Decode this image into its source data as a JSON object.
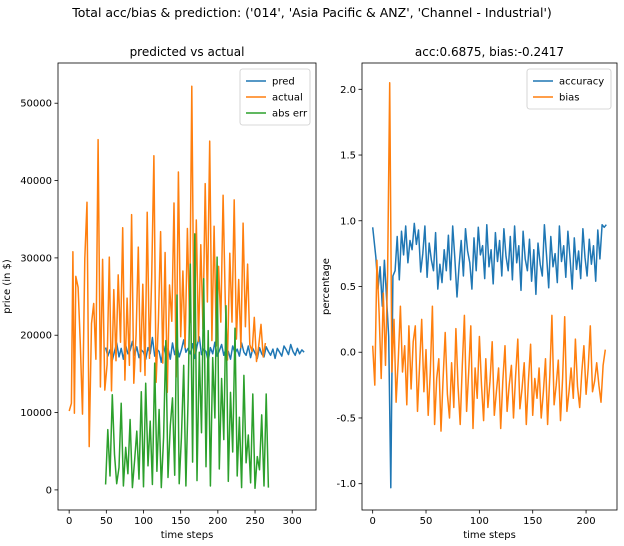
{
  "figure": {
    "suptitle": "Total acc/bias & prediction: ('014', 'Asia Pacific & ANZ', 'Channel - Industrial')"
  },
  "chart_data": [
    {
      "type": "line",
      "title": "predicted vs actual",
      "xlabel": "time steps",
      "ylabel": "price (in $)",
      "xlim": [
        -15,
        332
      ],
      "ylim": [
        -2600,
        55200
      ],
      "xticks": [
        0,
        50,
        100,
        150,
        200,
        250,
        300
      ],
      "yticks": [
        0,
        10000,
        20000,
        30000,
        40000,
        50000
      ],
      "legend_position": "top-right",
      "grid": false,
      "series": [
        {
          "name": "pred",
          "color": "#1f77b4",
          "x": [
            49,
            52,
            55,
            58,
            61,
            64,
            67,
            70,
            73,
            76,
            79,
            82,
            85,
            88,
            91,
            94,
            97,
            100,
            103,
            106,
            109,
            112,
            115,
            118,
            121,
            124,
            127,
            130,
            133,
            136,
            139,
            142,
            145,
            148,
            151,
            154,
            157,
            160,
            163,
            166,
            169,
            172,
            175,
            178,
            181,
            184,
            187,
            190,
            193,
            196,
            199,
            202,
            205,
            208,
            211,
            214,
            217,
            220,
            223,
            226,
            229,
            232,
            235,
            238,
            241,
            244,
            247,
            250,
            253,
            256,
            259,
            262,
            265,
            268,
            271,
            274,
            277,
            280,
            283,
            286,
            289,
            292,
            295,
            298,
            301,
            304,
            307,
            310,
            313,
            316
          ],
          "y": [
            18400,
            17300,
            18100,
            16800,
            17900,
            19000,
            17200,
            18300,
            16900,
            18700,
            17600,
            18000,
            19200,
            17400,
            18500,
            17100,
            18100,
            17800,
            16900,
            18400,
            17600,
            19700,
            17300,
            18200,
            17900,
            16500,
            18600,
            17400,
            18300,
            16900,
            19000,
            17500,
            18700,
            17200,
            18100,
            19400,
            17800,
            18300,
            17600,
            18900,
            17000,
            18600,
            19800,
            17500,
            18200,
            17900,
            16700,
            18400,
            17600,
            19100,
            17300,
            18000,
            18800,
            17400,
            18300,
            17900,
            16900,
            18600,
            17700,
            18200,
            17300,
            19000,
            17800,
            17400,
            18600,
            17100,
            18300,
            17700,
            17000,
            18400,
            17600,
            17200,
            18500,
            17900,
            17400,
            18200,
            17000,
            18300,
            17800,
            17300,
            18600,
            18100,
            17500,
            18800,
            17900,
            17400,
            18300,
            17600,
            18100,
            17800
          ]
        },
        {
          "name": "actual",
          "color": "#ff7f0e",
          "x": [
            0,
            3,
            5,
            7,
            9,
            12,
            15,
            18,
            21,
            24,
            27,
            30,
            33,
            36,
            39,
            42,
            45,
            48,
            51,
            54,
            57,
            60,
            63,
            66,
            69,
            72,
            75,
            78,
            81,
            84,
            87,
            90,
            93,
            96,
            99,
            102,
            105,
            108,
            111,
            114,
            117,
            120,
            123,
            126,
            129,
            132,
            135,
            138,
            141,
            144,
            147,
            150,
            153,
            156,
            159,
            162,
            165,
            168,
            171,
            174,
            177,
            180,
            183,
            186,
            189,
            192,
            195,
            198,
            201,
            204,
            207,
            210,
            213,
            216,
            219,
            222,
            225,
            228,
            231,
            234,
            237,
            240,
            243,
            246,
            249,
            252,
            255,
            258,
            261,
            264
          ],
          "y": [
            10200,
            11200,
            30800,
            9900,
            27600,
            26200,
            18900,
            9800,
            29900,
            37200,
            5600,
            21500,
            24100,
            16900,
            45300,
            13300,
            29800,
            12900,
            16200,
            30100,
            12800,
            25900,
            16700,
            27800,
            19100,
            33900,
            14200,
            24800,
            16100,
            35600,
            13800,
            20100,
            31400,
            15300,
            26600,
            14800,
            35900,
            17000,
            27500,
            43200,
            13900,
            21800,
            33400,
            16400,
            30700,
            12600,
            26500,
            21800,
            37100,
            14600,
            41100,
            19800,
            28300,
            18400,
            33800,
            21600,
            52200,
            17600,
            34900,
            19200,
            31700,
            20800,
            39600,
            24300,
            45100,
            19300,
            34100,
            18600,
            28900,
            21700,
            38100,
            24200,
            16800,
            30600,
            21700,
            37500,
            19500,
            27200,
            18400,
            34500,
            21100,
            29200,
            18800,
            17900,
            22300,
            16600,
            18600,
            21400,
            17200,
            19000
          ]
        },
        {
          "name": "abs err",
          "color": "#2ca02c",
          "x": [
            49,
            52,
            55,
            58,
            61,
            64,
            67,
            70,
            73,
            76,
            79,
            82,
            85,
            88,
            91,
            94,
            97,
            100,
            103,
            106,
            109,
            112,
            115,
            118,
            121,
            124,
            127,
            130,
            133,
            136,
            139,
            142,
            145,
            148,
            151,
            154,
            157,
            160,
            163,
            166,
            169,
            172,
            175,
            178,
            181,
            184,
            187,
            190,
            193,
            196,
            199,
            202,
            205,
            208,
            211,
            214,
            217,
            220,
            223,
            226,
            229,
            232,
            235,
            238,
            241,
            244,
            247,
            250,
            253,
            256,
            259,
            262,
            265,
            268
          ],
          "y": [
            700,
            7800,
            1800,
            12300,
            4600,
            800,
            2900,
            11200,
            500,
            5500,
            2100,
            9100,
            300,
            3800,
            7600,
            1400,
            12700,
            400,
            13800,
            3100,
            8900,
            700,
            16400,
            2400,
            10400,
            300,
            6800,
            19300,
            1600,
            8300,
            11900,
            1900,
            25200,
            800,
            6700,
            16100,
            500,
            11800,
            29200,
            3600,
            33100,
            1200,
            17800,
            7400,
            27300,
            3000,
            20600,
            500,
            17100,
            9300,
            30100,
            2700,
            14400,
            6500,
            23800,
            1100,
            12600,
            4900,
            20900,
            1800,
            9400,
            300,
            14800,
            3500,
            7100,
            900,
            12400,
            200,
            4300,
            2600,
            9700,
            500,
            12400,
            300
          ]
        }
      ]
    },
    {
      "type": "line",
      "title": "acc:0.6875, bias:-0.2417",
      "xlabel": "time steps",
      "ylabel": "percentage",
      "xlim": [
        -10,
        229
      ],
      "ylim": [
        -1.2,
        2.2
      ],
      "xticks": [
        0,
        50,
        100,
        150,
        200
      ],
      "yticks": [
        -1.0,
        -0.5,
        0.0,
        0.5,
        1.0,
        1.5,
        2.0
      ],
      "legend_position": "top-right",
      "grid": false,
      "series": [
        {
          "name": "accuracy",
          "color": "#1f77b4",
          "x": [
            0,
            3,
            5,
            7,
            9,
            11,
            13,
            15,
            17,
            19,
            21,
            23,
            25,
            27,
            29,
            31,
            33,
            35,
            37,
            39,
            41,
            43,
            45,
            47,
            49,
            51,
            53,
            55,
            57,
            59,
            61,
            63,
            65,
            67,
            69,
            71,
            73,
            75,
            77,
            79,
            81,
            83,
            85,
            87,
            89,
            91,
            93,
            95,
            97,
            99,
            101,
            103,
            105,
            107,
            109,
            111,
            113,
            115,
            117,
            119,
            121,
            123,
            125,
            127,
            129,
            131,
            133,
            135,
            137,
            139,
            141,
            143,
            145,
            147,
            149,
            151,
            153,
            155,
            157,
            159,
            161,
            163,
            165,
            167,
            169,
            171,
            173,
            175,
            177,
            179,
            181,
            183,
            185,
            187,
            189,
            191,
            193,
            195,
            197,
            199,
            201,
            203,
            205,
            207,
            209,
            211,
            213,
            215,
            217,
            219
          ],
          "y": [
            0.95,
            0.72,
            0.48,
            0.65,
            0.35,
            0.7,
            0.42,
            0.12,
            -1.03,
            0.58,
            0.62,
            0.88,
            0.55,
            0.92,
            0.74,
            0.96,
            0.68,
            0.85,
            0.78,
            0.98,
            0.82,
            0.93,
            0.61,
            0.75,
            0.96,
            0.57,
            0.83,
            0.7,
            0.62,
            0.91,
            0.48,
            0.67,
            0.53,
            0.78,
            0.62,
            0.89,
            0.55,
            0.96,
            0.72,
            0.42,
            0.66,
            0.85,
            0.58,
            0.94,
            0.77,
            0.68,
            0.48,
            0.87,
            0.62,
            0.95,
            0.74,
            0.81,
            0.56,
            0.97,
            0.65,
            0.78,
            0.52,
            0.91,
            0.69,
            0.85,
            0.58,
            0.94,
            0.73,
            0.62,
            0.88,
            0.55,
            0.96,
            0.68,
            0.81,
            0.47,
            0.92,
            0.71,
            0.62,
            0.86,
            0.54,
            0.78,
            0.44,
            0.83,
            0.67,
            0.58,
            0.97,
            0.73,
            0.49,
            0.88,
            0.65,
            0.75,
            0.53,
            0.96,
            0.69,
            0.81,
            0.57,
            0.92,
            0.71,
            0.48,
            0.87,
            0.63,
            0.77,
            0.56,
            0.94,
            0.72,
            0.58,
            0.86,
            0.67,
            0.81,
            0.54,
            0.93,
            0.71,
            0.97,
            0.95,
            0.97
          ]
        },
        {
          "name": "bias",
          "color": "#ff7f0e",
          "x": [
            0,
            2,
            4,
            6,
            8,
            10,
            12,
            14,
            16,
            18,
            20,
            22,
            24,
            26,
            28,
            30,
            32,
            34,
            36,
            38,
            40,
            42,
            44,
            46,
            48,
            50,
            52,
            54,
            56,
            58,
            60,
            62,
            64,
            66,
            68,
            70,
            72,
            74,
            76,
            78,
            80,
            82,
            84,
            86,
            88,
            90,
            92,
            94,
            96,
            98,
            100,
            102,
            104,
            106,
            108,
            110,
            112,
            114,
            116,
            118,
            120,
            122,
            124,
            126,
            128,
            130,
            132,
            134,
            136,
            138,
            140,
            142,
            144,
            146,
            148,
            150,
            152,
            154,
            156,
            158,
            160,
            162,
            164,
            166,
            168,
            170,
            172,
            174,
            176,
            178,
            180,
            182,
            184,
            186,
            188,
            190,
            192,
            194,
            196,
            198,
            200,
            202,
            204,
            206,
            208,
            210,
            212,
            214,
            216,
            218
          ],
          "y": [
            0.05,
            -0.25,
            0.7,
            0.3,
            -0.2,
            0.45,
            -0.1,
            0.6,
            2.05,
            -0.15,
            0.25,
            -0.38,
            -0.05,
            0.35,
            -0.15,
            0.05,
            -0.4,
            0.2,
            -0.28,
            0.08,
            0.2,
            -0.45,
            -0.1,
            0.25,
            -0.3,
            0.02,
            -0.48,
            -0.15,
            0.35,
            -0.55,
            -0.2,
            -0.05,
            -0.6,
            -0.2,
            0.15,
            -0.32,
            -0.5,
            -0.08,
            -0.42,
            0.18,
            -0.25,
            -0.55,
            -0.1,
            0.28,
            -0.45,
            -0.15,
            0.2,
            -0.58,
            -0.12,
            -0.35,
            0.12,
            -0.25,
            -0.52,
            -0.05,
            -0.42,
            -0.22,
            0.08,
            -0.48,
            -0.3,
            -0.12,
            -0.58,
            -0.22,
            0.05,
            -0.45,
            -0.25,
            -0.1,
            -0.5,
            -0.18,
            0.1,
            -0.43,
            -0.28,
            -0.08,
            -0.55,
            -0.22,
            0.06,
            -0.48,
            -0.2,
            -0.35,
            -0.12,
            -0.5,
            -0.3,
            -0.05,
            -0.55,
            -0.18,
            0.28,
            -0.4,
            -0.25,
            -0.06,
            -0.52,
            -0.2,
            0.27,
            -0.45,
            -0.3,
            -0.12,
            -0.35,
            0.1,
            -0.26,
            -0.42,
            -0.15,
            0.05,
            -0.32,
            -0.12,
            0.2,
            -0.3,
            -0.22,
            -0.08,
            -0.25,
            -0.38,
            -0.1,
            0.02
          ]
        }
      ]
    }
  ]
}
